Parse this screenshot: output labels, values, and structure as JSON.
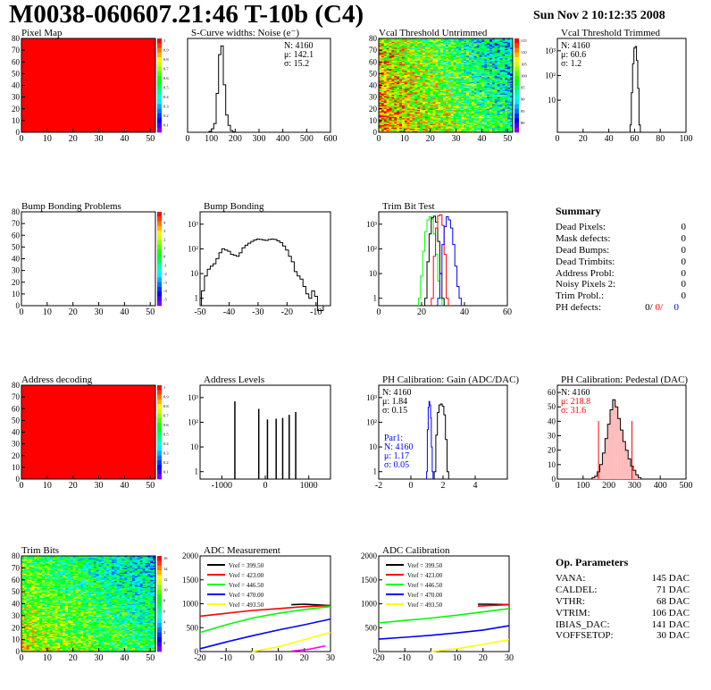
{
  "header": {
    "title": "M0038-060607.21:46 T-10b (C4)",
    "timestamp": "Sun Nov  2 10:12:35 2008"
  },
  "summary": {
    "title": "Summary",
    "rows": [
      {
        "label": "Dead Pixels:",
        "value": "0"
      },
      {
        "label": "Mask defects:",
        "value": "0"
      },
      {
        "label": "Dead Bumps:",
        "value": "0"
      },
      {
        "label": "Dead Trimbits:",
        "value": "0"
      },
      {
        "label": "Address Probl:",
        "value": "0"
      },
      {
        "label": "Noisy Pixels 2:",
        "value": "0"
      },
      {
        "label": "Trim Probl.:",
        "value": "0"
      },
      {
        "label": "PH defects:",
        "value": "0"
      }
    ],
    "ph_defects_extra": [
      "0/",
      "0/"
    ]
  },
  "op_params": {
    "title": "Op. Parameters",
    "rows": [
      {
        "label": "VANA:",
        "value": "145 DAC"
      },
      {
        "label": "CALDEL:",
        "value": "71 DAC"
      },
      {
        "label": "VTHR:",
        "value": "68 DAC"
      },
      {
        "label": "VTRIM:",
        "value": "106 DAC"
      },
      {
        "label": "IBIAS_DAC:",
        "value": "141 DAC"
      },
      {
        "label": "VOFFSETOP:",
        "value": "30 DAC"
      }
    ]
  },
  "colors": {
    "map_red": "#ff0000",
    "red": "#ff0000",
    "blue": "#0000ff",
    "green": "#00ff00",
    "yellow": "#ffff00",
    "magenta": "#ff00ff",
    "black": "#000000"
  },
  "chart_data": [
    {
      "id": "pixel-map",
      "type": "heatmap",
      "title": "Pixel Map",
      "xlim": [
        0,
        52
      ],
      "ylim": [
        0,
        80
      ],
      "xticks": [
        "0",
        "10",
        "20",
        "30",
        "40",
        "50"
      ],
      "yticks": [
        "0",
        "10",
        "20",
        "30",
        "40",
        "50",
        "60",
        "70",
        "80"
      ],
      "zticks": [
        "1",
        "0.9",
        "0.8",
        "0.7",
        "0.6",
        "0.5",
        "0.4",
        "0.3",
        "0.2",
        "0.1"
      ],
      "fill": "uniform-1"
    },
    {
      "id": "scurve",
      "type": "histogram",
      "title": "S-Curve widths: Noise (e⁻)",
      "xlim": [
        0,
        600
      ],
      "log": false,
      "xticks": [
        "0",
        "100",
        "200",
        "300",
        "400",
        "500",
        "600"
      ],
      "yticks": [],
      "stats": [
        "N: 4160",
        "μ: 142.1",
        "σ: 15.2"
      ],
      "series": [
        {
          "name": "",
          "x": [
            95,
            105,
            115,
            125,
            135,
            145,
            155,
            165,
            175,
            185,
            195
          ],
          "values": [
            0.01,
            0.04,
            0.1,
            0.45,
            0.9,
            1.0,
            0.55,
            0.2,
            0.08,
            0.02,
            0.005
          ]
        }
      ]
    },
    {
      "id": "vcal-untrimmed",
      "type": "heatmap",
      "title": "Vcal Threshold Untrimmed",
      "xlim": [
        0,
        52
      ],
      "ylim": [
        0,
        80
      ],
      "xticks": [
        "0",
        "10",
        "20",
        "30",
        "40",
        "50"
      ],
      "yticks": [
        "0",
        "10",
        "20",
        "30",
        "40",
        "50",
        "60",
        "70",
        "80"
      ],
      "zticks": [
        "115",
        "110",
        "105",
        "100",
        "95",
        "90",
        "85",
        "80"
      ],
      "fill": "noise-gradient"
    },
    {
      "id": "vcal-trimmed",
      "type": "histogram",
      "title": "Vcal Threshold Trimmed",
      "xlim": [
        0,
        100
      ],
      "log": true,
      "xticks": [
        "0",
        "20",
        "40",
        "60",
        "80",
        "100"
      ],
      "yticks": [
        "10",
        "10²",
        "10³"
      ],
      "stats": [
        "N: 4160",
        "μ: 60.6",
        "σ:  1.2"
      ],
      "series": [
        {
          "name": "",
          "x": [
            57,
            58,
            59,
            60,
            61,
            62,
            63,
            64
          ],
          "values": [
            1,
            20,
            300,
            1300,
            1500,
            400,
            30,
            1
          ]
        }
      ]
    },
    {
      "id": "bump-problems",
      "type": "heatmap",
      "title": "Bump Bonding Problems",
      "xlim": [
        0,
        52
      ],
      "ylim": [
        0,
        80
      ],
      "xticks": [
        "0",
        "10",
        "20",
        "30",
        "40",
        "50"
      ],
      "yticks": [
        "0",
        "10",
        "20",
        "30",
        "40",
        "50",
        "60",
        "70",
        "80"
      ],
      "zticks": [
        "5",
        "4",
        "3",
        "2",
        "1",
        "0",
        "-1",
        "-2",
        "-3",
        "-4",
        "-5"
      ],
      "fill": "empty"
    },
    {
      "id": "bump-bonding",
      "type": "histogram",
      "title": "Bump Bonding",
      "xlim": [
        -50,
        -5
      ],
      "log": true,
      "xticks": [
        "-50",
        "-40",
        "-30",
        "-20",
        "-10"
      ],
      "yticks": [
        "1",
        "10",
        "10²",
        "10³"
      ],
      "series": [
        {
          "name": "",
          "x": [
            -49,
            -48,
            -47,
            -46,
            -45,
            -44,
            -43,
            -42,
            -41,
            -40,
            -39,
            -38,
            -37,
            -36,
            -35,
            -34,
            -33,
            -32,
            -31,
            -30,
            -29,
            -28,
            -27,
            -26,
            -25,
            -24,
            -23,
            -22,
            -21,
            -20,
            -19,
            -18,
            -17,
            -16,
            -15,
            -14,
            -13,
            -12,
            -11,
            -10,
            -9,
            -8
          ],
          "values": [
            2,
            8,
            15,
            20,
            25,
            40,
            70,
            100,
            90,
            80,
            60,
            55,
            50,
            70,
            110,
            140,
            170,
            200,
            230,
            250,
            240,
            230,
            220,
            240,
            250,
            240,
            210,
            180,
            130,
            90,
            50,
            30,
            12,
            8,
            6,
            3,
            1.5,
            1,
            2,
            1.2,
            0,
            0
          ]
        }
      ]
    },
    {
      "id": "trim-bit-test",
      "type": "histogram",
      "title": "Trim Bit Test",
      "xlim": [
        0,
        60
      ],
      "log": true,
      "xticks": [
        "0",
        "20",
        "40",
        "60"
      ],
      "yticks": [
        "1",
        "10",
        "10²",
        "10³"
      ],
      "series": [
        {
          "name": "",
          "color": "green",
          "x": [
            19,
            20,
            21,
            22,
            23,
            24,
            25,
            26,
            27,
            28,
            29
          ],
          "values": [
            1,
            8,
            80,
            500,
            1500,
            2000,
            1600,
            400,
            60,
            5,
            1
          ]
        },
        {
          "name": "",
          "color": "black",
          "x": [
            22,
            23,
            24,
            25,
            26,
            27,
            28,
            29,
            30
          ],
          "values": [
            1,
            30,
            400,
            1800,
            2100,
            1200,
            200,
            10,
            1
          ]
        },
        {
          "name": "",
          "color": "red",
          "x": [
            25,
            26,
            27,
            28,
            29,
            30,
            31,
            32
          ],
          "values": [
            1,
            50,
            700,
            2200,
            2400,
            900,
            60,
            1
          ]
        },
        {
          "name": "",
          "color": "blue",
          "x": [
            28,
            29,
            30,
            31,
            32,
            33,
            34,
            35,
            36,
            37,
            38
          ],
          "values": [
            1,
            10,
            150,
            800,
            2000,
            1500,
            700,
            150,
            20,
            3,
            1
          ]
        }
      ]
    },
    {
      "id": "address-decoding",
      "type": "heatmap",
      "title": "Address decoding",
      "xlim": [
        0,
        52
      ],
      "ylim": [
        0,
        80
      ],
      "xticks": [
        "0",
        "10",
        "20",
        "30",
        "40",
        "50"
      ],
      "yticks": [
        "0",
        "10",
        "20",
        "30",
        "40",
        "50",
        "60",
        "70",
        "80"
      ],
      "zticks": [
        "1",
        "0.9",
        "0.8",
        "0.7",
        "0.6",
        "0.5",
        "0.4",
        "0.3",
        "0.2",
        "0.1"
      ],
      "fill": "uniform-1"
    },
    {
      "id": "address-levels",
      "type": "bar",
      "title": "Address Levels",
      "xlim": [
        -1500,
        1500
      ],
      "log": true,
      "xticks": [
        "-1000",
        "0",
        "1000"
      ],
      "yticks": [
        "1",
        "10",
        "10²",
        "10³"
      ],
      "series": [
        {
          "name": "",
          "x": [
            -700,
            -150,
            50,
            250,
            400,
            550,
            700
          ],
          "values": [
            700,
            350,
            130,
            140,
            150,
            200,
            260
          ]
        }
      ]
    },
    {
      "id": "ph-gain",
      "type": "histogram",
      "title": "PH Calibration: Gain (ADC/DAC)",
      "xlim": [
        -2,
        6
      ],
      "log": true,
      "xticks": [
        "-2",
        "0",
        "2",
        "4"
      ],
      "yticks": [
        "1",
        "10",
        "10²",
        "10³"
      ],
      "stats": [
        "N: 4160",
        "μ: 1.84",
        "σ: 0.15"
      ],
      "stats2": [
        "Par1:",
        "N: 4160",
        "μ: 1.17",
        "σ: 0.05"
      ],
      "series": [
        {
          "name": "",
          "color": "black",
          "x": [
            1.5,
            1.6,
            1.7,
            1.8,
            1.9,
            2.0,
            2.1,
            2.2,
            2.3
          ],
          "values": [
            1,
            30,
            250,
            500,
            550,
            450,
            200,
            20,
            1
          ]
        },
        {
          "name": "",
          "color": "blue",
          "x": [
            1.0,
            1.05,
            1.1,
            1.15,
            1.2,
            1.25,
            1.3,
            1.35
          ],
          "values": [
            1,
            50,
            400,
            700,
            500,
            150,
            10,
            1
          ]
        }
      ]
    },
    {
      "id": "ph-pedestal",
      "type": "histogram",
      "title": "PH Calibration: Pedestal (DAC)",
      "xlim": [
        0,
        500
      ],
      "ylim": [
        0,
        65
      ],
      "log": false,
      "xticks": [
        "0",
        "100",
        "200",
        "300",
        "400",
        "500"
      ],
      "yticks": [
        "0",
        "10",
        "20",
        "30",
        "40",
        "50",
        "60"
      ],
      "stats": [
        "N: 4160",
        "μ: 218.8",
        "σ: 31.6"
      ],
      "series": [
        {
          "name": "",
          "x": [
            140,
            150,
            160,
            170,
            180,
            190,
            200,
            210,
            220,
            230,
            240,
            250,
            260,
            270,
            280,
            290,
            300,
            310,
            320
          ],
          "values": [
            1,
            2,
            5,
            10,
            18,
            28,
            38,
            48,
            55,
            50,
            42,
            34,
            26,
            20,
            14,
            9,
            6,
            3,
            1
          ]
        }
      ]
    },
    {
      "id": "trim-bits",
      "type": "heatmap",
      "title": "Trim Bits",
      "xlim": [
        0,
        52
      ],
      "ylim": [
        0,
        80
      ],
      "xticks": [
        "0",
        "10",
        "20",
        "30",
        "40",
        "50"
      ],
      "yticks": [
        "0",
        "10",
        "20",
        "30",
        "40",
        "50",
        "60",
        "70",
        "80"
      ],
      "zticks": [
        "16",
        "14",
        "12",
        "10",
        "8",
        "6",
        "4",
        "2",
        "0"
      ],
      "fill": "noise-gradient-2"
    },
    {
      "id": "adc-measurement",
      "type": "line",
      "title": "ADC Measurement",
      "xlim": [
        -20,
        30
      ],
      "ylim": [
        0,
        2000
      ],
      "xticks": [
        "-20",
        "-10",
        "0",
        "10",
        "20",
        "30"
      ],
      "yticks": [
        "0",
        "500",
        "1000",
        "1500",
        "2000"
      ],
      "series": [
        {
          "name": "Vref = 399.50",
          "color": "black",
          "x": [
            15,
            20,
            25,
            30
          ],
          "values": [
            980,
            990,
            975,
            960
          ]
        },
        {
          "name": "Vref = 423.00",
          "color": "red",
          "x": [
            -20,
            -10,
            0,
            10,
            20,
            30
          ],
          "values": [
            740,
            800,
            860,
            900,
            940,
            960
          ]
        },
        {
          "name": "Vref = 446.50",
          "color": "green",
          "x": [
            -20,
            -10,
            0,
            10,
            20,
            30
          ],
          "values": [
            400,
            560,
            700,
            800,
            880,
            940
          ]
        },
        {
          "name": "Vref = 470.00",
          "color": "blue",
          "x": [
            -20,
            -10,
            0,
            10,
            20,
            30
          ],
          "values": [
            60,
            200,
            330,
            450,
            560,
            680
          ]
        },
        {
          "name": "Vref = 493.50",
          "color": "yellow",
          "x": [
            0,
            10,
            20,
            30
          ],
          "values": [
            0,
            100,
            250,
            400
          ]
        },
        {
          "name": "",
          "color": "magenta",
          "x": [
            15,
            22,
            28
          ],
          "values": [
            10,
            50,
            120
          ]
        }
      ]
    },
    {
      "id": "adc-calibration",
      "type": "line",
      "title": "ADC Calibration",
      "xlim": [
        -20,
        30
      ],
      "ylim": [
        0,
        2000
      ],
      "xticks": [
        "-20",
        "-10",
        "0",
        "10",
        "20",
        "30"
      ],
      "yticks": [
        "0",
        "500",
        "1000",
        "1500",
        "2000"
      ],
      "series": [
        {
          "name": "Vref = 399.50",
          "color": "black",
          "x": [
            18,
            22,
            26,
            30
          ],
          "values": [
            990,
            990,
            985,
            980
          ]
        },
        {
          "name": "Vref = 423.00",
          "color": "red",
          "x": [
            18,
            22,
            26,
            30
          ],
          "values": [
            950,
            960,
            970,
            980
          ]
        },
        {
          "name": "Vref = 446.50",
          "color": "green",
          "x": [
            -20,
            -10,
            0,
            10,
            20,
            30
          ],
          "values": [
            600,
            650,
            700,
            760,
            830,
            900
          ]
        },
        {
          "name": "Vref = 470.00",
          "color": "blue",
          "x": [
            -20,
            -10,
            0,
            10,
            20,
            30
          ],
          "values": [
            260,
            300,
            340,
            390,
            450,
            540
          ]
        },
        {
          "name": "Vref = 493.50",
          "color": "yellow",
          "x": [
            0,
            10,
            20,
            30
          ],
          "values": [
            0,
            60,
            150,
            250
          ]
        }
      ]
    }
  ]
}
